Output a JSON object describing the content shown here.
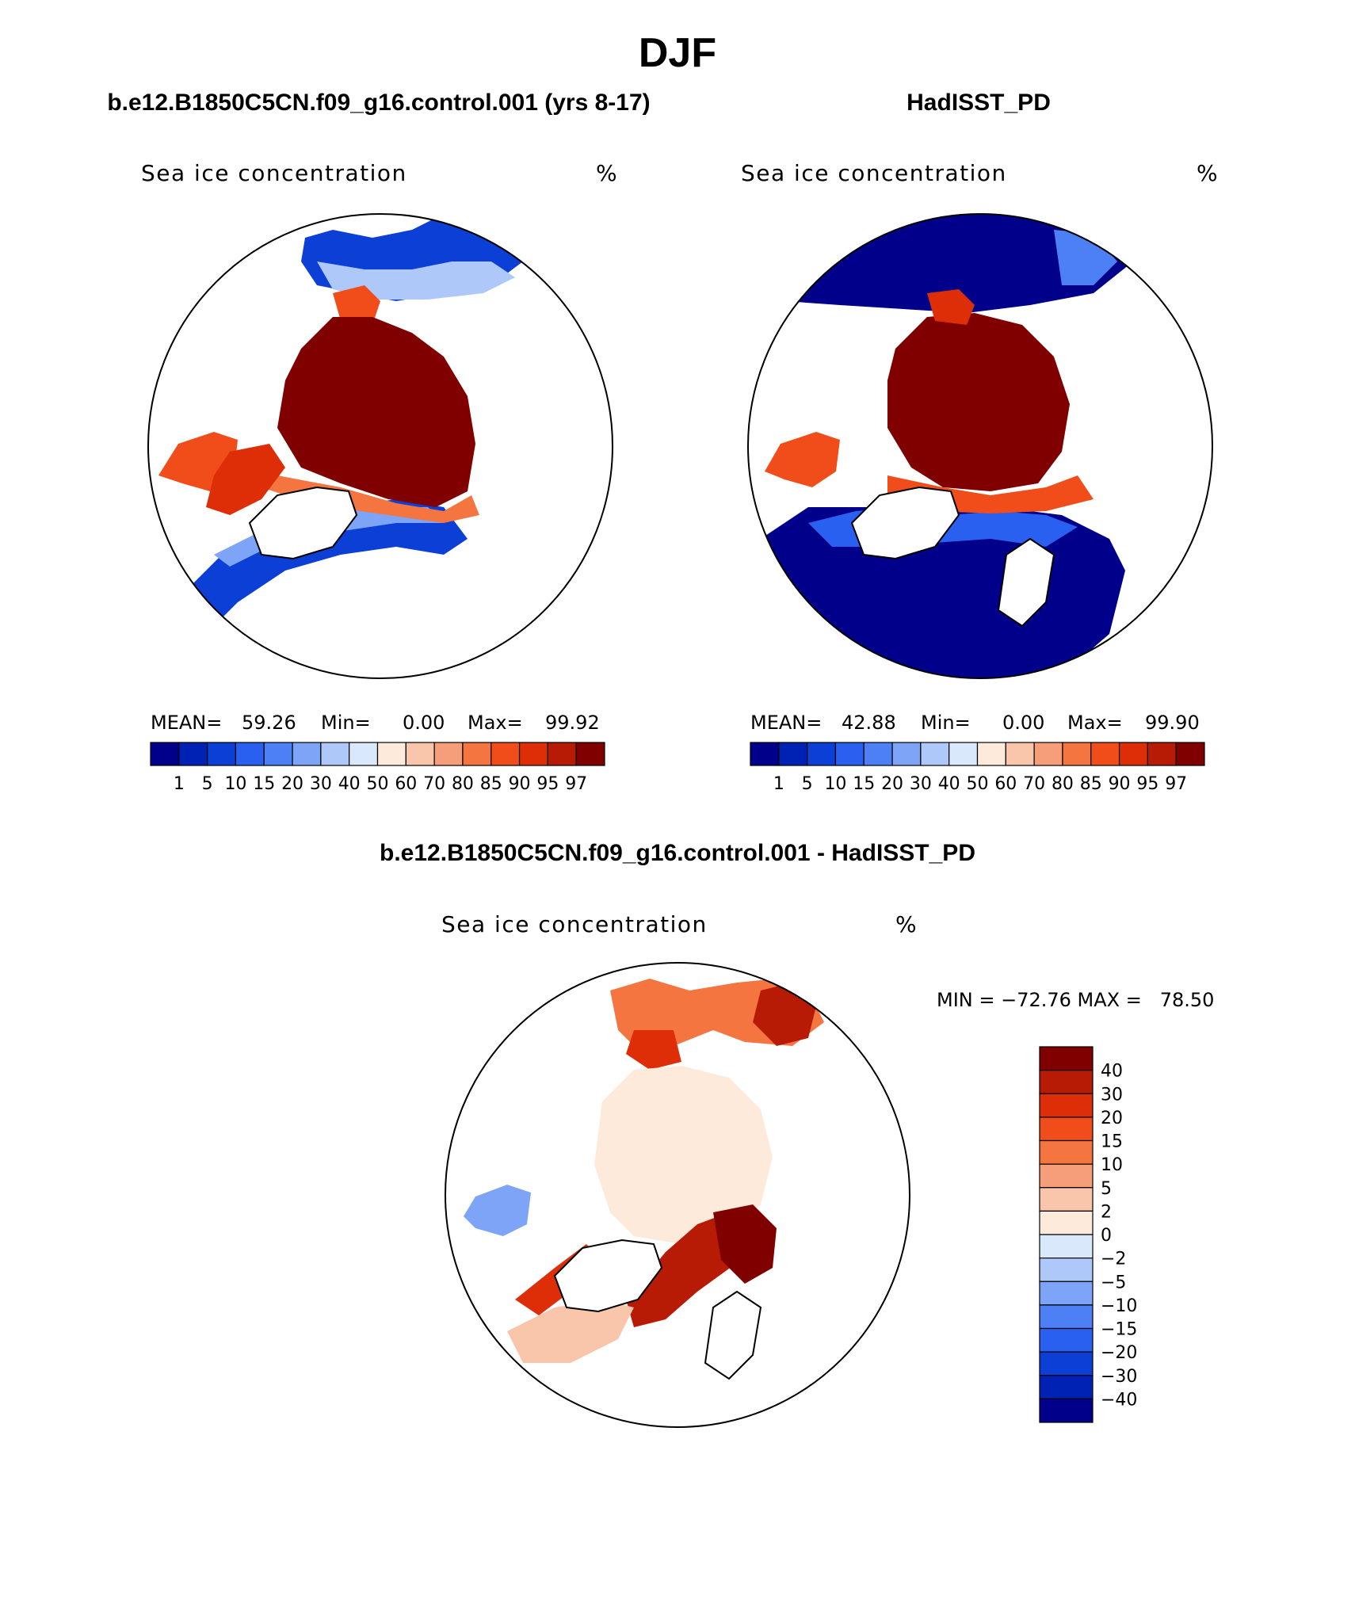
{
  "figure": {
    "title": "DJF",
    "panel_left_title": "b.e12.B1850C5CN.f09_g16.control.001 (yrs 8-17)",
    "panel_right_title": "HadISST_PD",
    "panel_diff_title": "b.e12.B1850C5CN.f09_g16.control.001 - HadISST_PD"
  },
  "chart_data": [
    {
      "type": "heatmap",
      "id": "model",
      "title": "b.e12.B1850C5CN.f09_g16.control.001 (yrs 8-17)",
      "variable": "Sea ice concentration",
      "units": "%",
      "projection": "north polar stereographic",
      "stats": {
        "mean_label": "MEAN=",
        "mean": "59.26",
        "min_label": "Min=",
        "min": "0.00",
        "max_label": "Max=",
        "max": "99.92"
      },
      "colorbar": {
        "levels": [
          "1",
          "5",
          "10",
          "15",
          "20",
          "30",
          "40",
          "50",
          "60",
          "70",
          "80",
          "85",
          "90",
          "95",
          "97"
        ],
        "colors": [
          "#00008b",
          "#0022b4",
          "#0b3fd6",
          "#2a60f0",
          "#4d7ff5",
          "#7ea4f7",
          "#aec8f9",
          "#d9e8fb",
          "#fdeadb",
          "#f9c6ab",
          "#f69e7a",
          "#f4753f",
          "#f04d1a",
          "#dd2e08",
          "#b81b05",
          "#800000"
        ]
      }
    },
    {
      "type": "heatmap",
      "id": "obs",
      "title": "HadISST_PD",
      "variable": "Sea ice concentration",
      "units": "%",
      "projection": "north polar stereographic",
      "stats": {
        "mean_label": "MEAN=",
        "mean": "42.88",
        "min_label": "Min=",
        "min": "0.00",
        "max_label": "Max=",
        "max": "99.90"
      },
      "colorbar": {
        "levels": [
          "1",
          "5",
          "10",
          "15",
          "20",
          "30",
          "40",
          "50",
          "60",
          "70",
          "80",
          "85",
          "90",
          "95",
          "97"
        ],
        "colors": [
          "#00008b",
          "#0022b4",
          "#0b3fd6",
          "#2a60f0",
          "#4d7ff5",
          "#7ea4f7",
          "#aec8f9",
          "#d9e8fb",
          "#fdeadb",
          "#f9c6ab",
          "#f69e7a",
          "#f4753f",
          "#f04d1a",
          "#dd2e08",
          "#b81b05",
          "#800000"
        ]
      }
    },
    {
      "type": "heatmap",
      "id": "diff",
      "title": "b.e12.B1850C5CN.f09_g16.control.001 - HadISST_PD",
      "variable": "Sea ice concentration",
      "units": "%",
      "projection": "north polar stereographic",
      "stats": {
        "text": "MIN = −72.76 MAX =   78.50",
        "min": -72.76,
        "max": 78.5
      },
      "colorbar": {
        "levels": [
          "40",
          "30",
          "20",
          "15",
          "10",
          "5",
          "2",
          "0",
          "−2",
          "−5",
          "−10",
          "−15",
          "−20",
          "−30",
          "−40"
        ],
        "colors": [
          "#800000",
          "#b81b05",
          "#dd2e08",
          "#f04d1a",
          "#f4753f",
          "#f69e7a",
          "#f9c6ab",
          "#fdeadb",
          "#d9e8fb",
          "#aec8f9",
          "#7ea4f7",
          "#4d7ff5",
          "#2a60f0",
          "#0b3fd6",
          "#0022b4",
          "#00008b"
        ]
      }
    }
  ]
}
